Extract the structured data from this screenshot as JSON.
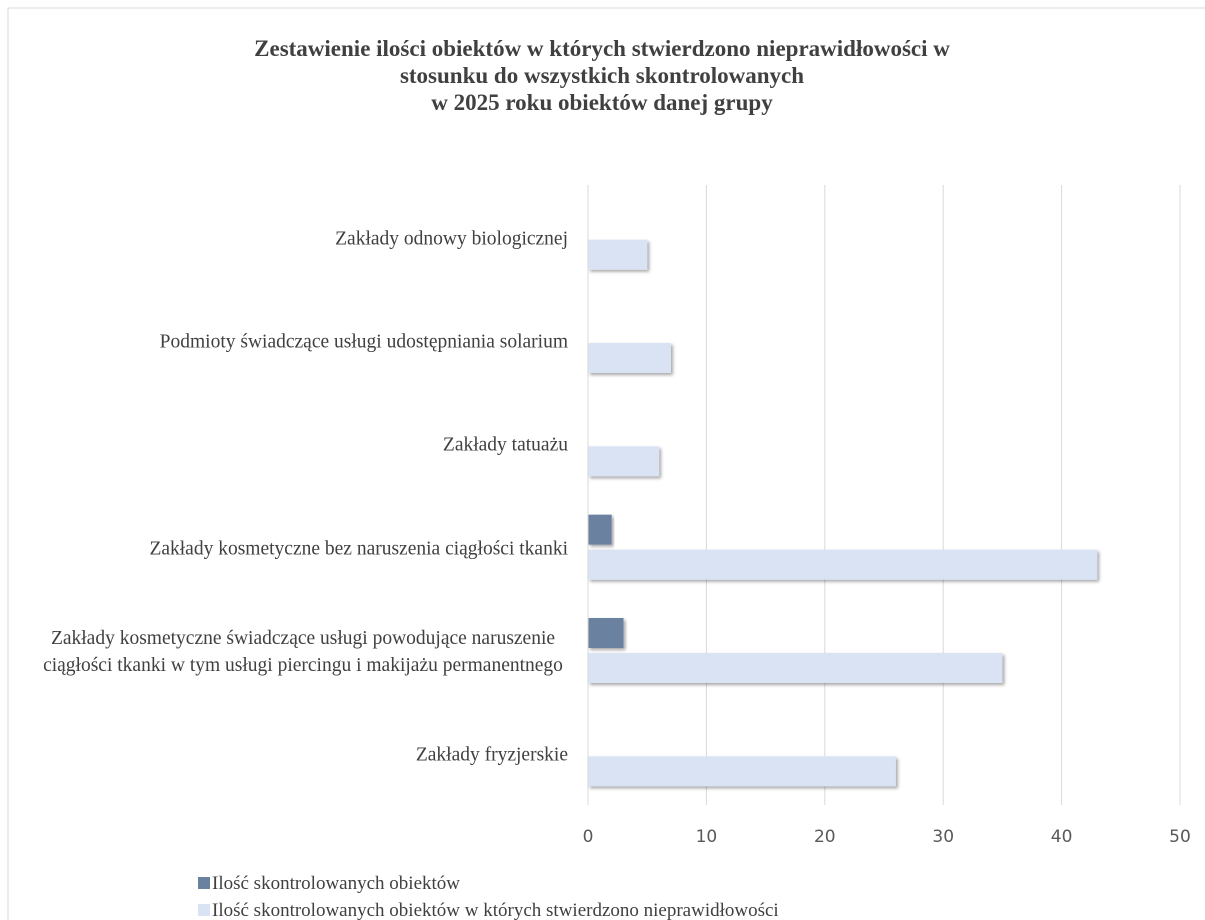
{
  "chart_data": {
    "type": "bar",
    "orientation": "horizontal",
    "title": [
      "Zestawienie ilości obiektów w których stwierdzono nieprawidłowości w",
      "stosunku do wszystkich skontrolowanych",
      "w 2025 roku obiektów danej grupy"
    ],
    "categories": [
      "Zakłady odnowy biologicznej",
      "Podmioty świadczące usługi udostępniania solarium",
      "Zakłady tatuażu",
      "Zakłady kosmetyczne bez naruszenia ciągłości tkanki",
      "Zakłady kosmetyczne świadczące usługi powodujące naruszenie ciągłości tkanki w tym usługi piercingu i makijażu permanentnego",
      "Zakłady fryzjerskie"
    ],
    "series": [
      {
        "name": "Ilość skontrolowanych obiektów",
        "color": "#6a819f",
        "values": [
          0,
          0,
          0,
          2,
          3,
          0
        ]
      },
      {
        "name": "Ilość skontrolowanych obiektów w których stwierdzono nieprawidłowości",
        "color": "#dae3f3",
        "values": [
          5,
          7,
          6,
          43,
          35,
          26
        ]
      }
    ],
    "xlim": [
      0,
      50
    ],
    "xticks": [
      0,
      10,
      20,
      30,
      40,
      50
    ],
    "grid": true,
    "legend": "bottom"
  }
}
